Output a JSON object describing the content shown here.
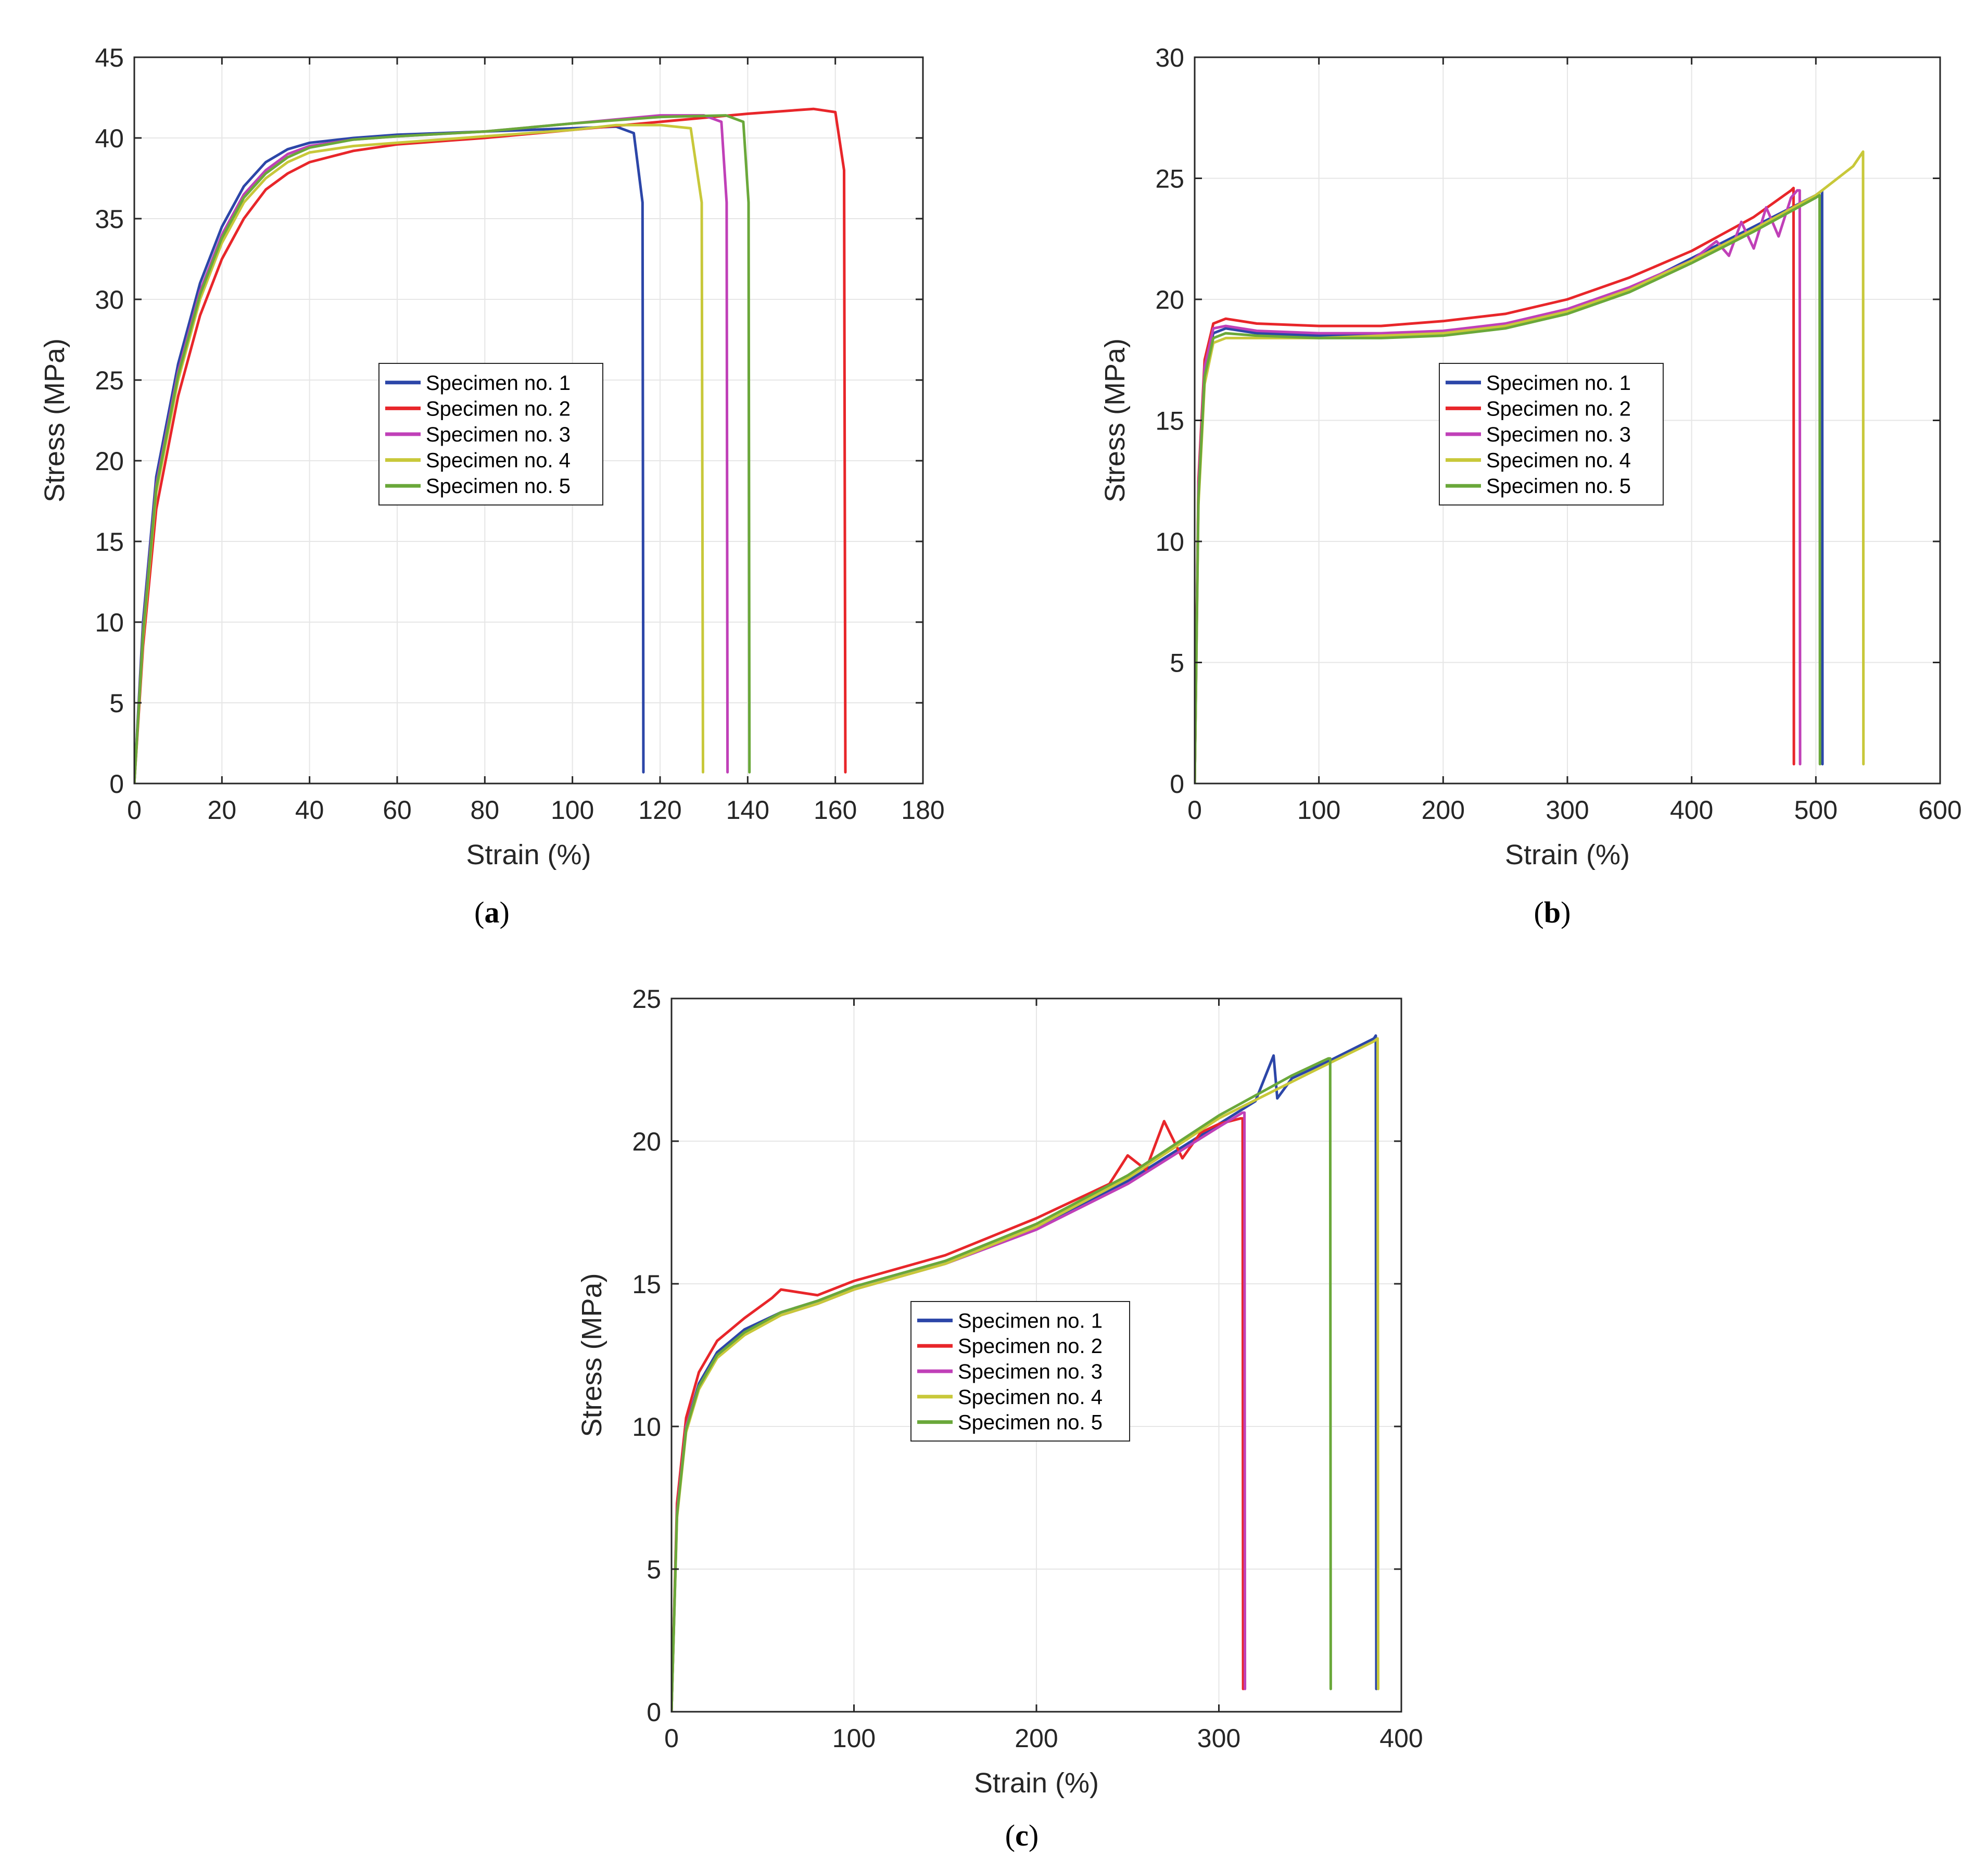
{
  "chart_data": [
    {
      "type": "line",
      "id": "a",
      "caption": "a",
      "xlabel": "Strain (%)",
      "ylabel": "Stress (MPa)",
      "xlim": [
        0,
        180
      ],
      "ylim": [
        0,
        45
      ],
      "xticks": [
        0,
        20,
        40,
        60,
        80,
        100,
        120,
        140,
        160,
        180
      ],
      "yticks": [
        0,
        5,
        10,
        15,
        20,
        25,
        30,
        35,
        40,
        45
      ],
      "grid": true,
      "legend_position": "center",
      "series": [
        {
          "name": "Specimen no. 1",
          "color": "#2c46a8",
          "x": [
            0,
            2,
            5,
            10,
            15,
            20,
            25,
            30,
            35,
            40,
            50,
            60,
            80,
            100,
            110,
            114,
            116,
            116.2
          ],
          "y": [
            0,
            10,
            19,
            26,
            31,
            34.5,
            37,
            38.5,
            39.3,
            39.7,
            40,
            40.2,
            40.4,
            40.6,
            40.7,
            40.3,
            36,
            0.7
          ]
        },
        {
          "name": "Specimen no. 2",
          "color": "#e8262a",
          "x": [
            0,
            2,
            5,
            10,
            15,
            20,
            25,
            30,
            35,
            40,
            50,
            60,
            80,
            100,
            120,
            140,
            155,
            160,
            162,
            162.3
          ],
          "y": [
            0,
            8.5,
            17,
            24,
            29,
            32.5,
            35,
            36.8,
            37.8,
            38.5,
            39.2,
            39.6,
            40,
            40.5,
            41,
            41.5,
            41.8,
            41.6,
            38,
            0.7
          ]
        },
        {
          "name": "Specimen no. 3",
          "color": "#c040b8",
          "x": [
            0,
            2,
            5,
            10,
            15,
            20,
            25,
            30,
            35,
            40,
            50,
            60,
            80,
            100,
            120,
            130,
            134,
            135.2,
            135.4
          ],
          "y": [
            0,
            9.5,
            18.5,
            25.5,
            30.5,
            34,
            36.5,
            38,
            39,
            39.5,
            39.9,
            40.1,
            40.4,
            40.9,
            41.4,
            41.4,
            41,
            36,
            0.7
          ]
        },
        {
          "name": "Specimen no. 4",
          "color": "#c8c83a",
          "x": [
            0,
            2,
            5,
            10,
            15,
            20,
            25,
            30,
            35,
            40,
            50,
            60,
            80,
            100,
            110,
            120,
            127,
            129.5,
            129.8
          ],
          "y": [
            0,
            9,
            18,
            25,
            30,
            33.5,
            36,
            37.5,
            38.5,
            39.1,
            39.5,
            39.7,
            40.1,
            40.5,
            40.8,
            40.8,
            40.6,
            36,
            0.7
          ]
        },
        {
          "name": "Specimen no. 5",
          "color": "#6aa83a",
          "x": [
            0,
            2,
            5,
            10,
            15,
            20,
            25,
            30,
            35,
            40,
            50,
            60,
            80,
            100,
            120,
            135,
            139,
            140.2,
            140.4
          ],
          "y": [
            0,
            9.3,
            18.3,
            25.3,
            30.3,
            33.8,
            36.3,
            37.8,
            38.8,
            39.4,
            39.9,
            40.1,
            40.4,
            40.9,
            41.3,
            41.4,
            41,
            36,
            0.7
          ]
        }
      ]
    },
    {
      "type": "line",
      "id": "b",
      "caption": "b",
      "xlabel": "Strain (%)",
      "ylabel": "Stress (MPa)",
      "xlim": [
        0,
        600
      ],
      "ylim": [
        0,
        30
      ],
      "xticks": [
        0,
        100,
        200,
        300,
        400,
        500,
        600
      ],
      "yticks": [
        0,
        5,
        10,
        15,
        20,
        25,
        30
      ],
      "grid": true,
      "legend_position": "center-right",
      "series": [
        {
          "name": "Specimen no. 1",
          "color": "#2c46a8",
          "x": [
            0,
            3,
            8,
            15,
            25,
            50,
            100,
            150,
            200,
            250,
            300,
            350,
            400,
            450,
            500,
            505,
            505.3
          ],
          "y": [
            0,
            12,
            17,
            18.6,
            18.8,
            18.6,
            18.5,
            18.5,
            18.6,
            18.9,
            19.5,
            20.4,
            21.7,
            23,
            24.3,
            24.5,
            0.8
          ]
        },
        {
          "name": "Specimen no. 2",
          "color": "#e8262a",
          "x": [
            0,
            3,
            8,
            15,
            25,
            50,
            100,
            150,
            200,
            250,
            300,
            350,
            400,
            450,
            480,
            482,
            482.3
          ],
          "y": [
            0,
            12.5,
            17.5,
            19,
            19.2,
            19,
            18.9,
            18.9,
            19.1,
            19.4,
            20,
            20.9,
            22,
            23.4,
            24.5,
            24.6,
            0.8
          ]
        },
        {
          "name": "Specimen no. 3",
          "color": "#c040b8",
          "x": [
            0,
            3,
            8,
            15,
            25,
            50,
            100,
            150,
            200,
            250,
            300,
            350,
            400,
            420,
            430,
            440,
            450,
            460,
            470,
            480,
            485,
            487,
            487.3
          ],
          "y": [
            0,
            12.2,
            17.2,
            18.8,
            18.9,
            18.7,
            18.6,
            18.6,
            18.7,
            19,
            19.6,
            20.5,
            21.6,
            22.4,
            21.8,
            23.2,
            22.1,
            23.8,
            22.6,
            24.2,
            24.5,
            24.5,
            0.8
          ]
        },
        {
          "name": "Specimen no. 4",
          "color": "#c8c83a",
          "x": [
            0,
            3,
            8,
            15,
            25,
            50,
            100,
            150,
            200,
            250,
            300,
            350,
            400,
            450,
            500,
            530,
            538,
            538.3
          ],
          "y": [
            0,
            11.5,
            16.5,
            18.2,
            18.4,
            18.4,
            18.4,
            18.5,
            18.6,
            18.9,
            19.5,
            20.4,
            21.6,
            22.9,
            24.3,
            25.5,
            26.1,
            0.8
          ]
        },
        {
          "name": "Specimen no. 5",
          "color": "#6aa83a",
          "x": [
            0,
            3,
            8,
            15,
            25,
            50,
            100,
            150,
            200,
            250,
            300,
            350,
            400,
            450,
            500,
            503,
            503.3
          ],
          "y": [
            0,
            11.8,
            16.8,
            18.4,
            18.6,
            18.5,
            18.4,
            18.4,
            18.5,
            18.8,
            19.4,
            20.3,
            21.5,
            22.8,
            24.2,
            24.3,
            0.8
          ]
        }
      ]
    },
    {
      "type": "line",
      "id": "c",
      "caption": "c",
      "xlabel": "Strain (%)",
      "ylabel": "Stress (MPa)",
      "xlim": [
        0,
        400
      ],
      "ylim": [
        0,
        25
      ],
      "xticks": [
        0,
        100,
        200,
        300,
        400
      ],
      "yticks": [
        0,
        5,
        10,
        15,
        20,
        25
      ],
      "grid": true,
      "legend_position": "bottom-center",
      "series": [
        {
          "name": "Specimen no. 1",
          "color": "#2c46a8",
          "x": [
            0,
            3,
            8,
            15,
            25,
            40,
            60,
            80,
            100,
            150,
            200,
            250,
            300,
            320,
            330,
            332,
            340,
            360,
            385,
            386,
            386.3
          ],
          "y": [
            0,
            7,
            10,
            11.5,
            12.6,
            13.4,
            14,
            14.4,
            14.9,
            15.8,
            17,
            18.6,
            20.6,
            21.4,
            23,
            21.5,
            22.2,
            22.8,
            23.6,
            23.7,
            0.8
          ]
        },
        {
          "name": "Specimen no. 2",
          "color": "#e8262a",
          "x": [
            0,
            3,
            8,
            15,
            25,
            40,
            55,
            60,
            80,
            100,
            150,
            200,
            240,
            250,
            260,
            270,
            280,
            290,
            300,
            312,
            313,
            313.3
          ],
          "y": [
            0,
            7.3,
            10.3,
            11.9,
            13,
            13.8,
            14.5,
            14.8,
            14.6,
            15.1,
            16,
            17.3,
            18.5,
            19.5,
            19,
            20.7,
            19.4,
            20.3,
            20.6,
            20.8,
            20.8,
            0.8
          ]
        },
        {
          "name": "Specimen no. 3",
          "color": "#c040b8",
          "x": [
            0,
            3,
            8,
            15,
            25,
            40,
            60,
            80,
            100,
            150,
            200,
            250,
            300,
            313,
            314,
            314.3
          ],
          "y": [
            0,
            7,
            10,
            11.4,
            12.5,
            13.3,
            13.9,
            14.3,
            14.8,
            15.7,
            16.9,
            18.5,
            20.5,
            21,
            21,
            0.8
          ]
        },
        {
          "name": "Specimen no. 4",
          "color": "#c8c83a",
          "x": [
            0,
            3,
            8,
            15,
            25,
            40,
            60,
            80,
            100,
            150,
            200,
            250,
            300,
            350,
            385,
            387,
            387.3
          ],
          "y": [
            0,
            6.8,
            9.8,
            11.3,
            12.4,
            13.2,
            13.9,
            14.3,
            14.8,
            15.7,
            17,
            18.7,
            20.8,
            22.4,
            23.5,
            23.6,
            0.8
          ]
        },
        {
          "name": "Specimen no. 5",
          "color": "#6aa83a",
          "x": [
            0,
            3,
            8,
            15,
            25,
            40,
            60,
            80,
            100,
            150,
            200,
            250,
            300,
            340,
            360,
            361,
            361.3
          ],
          "y": [
            0,
            6.9,
            9.9,
            11.4,
            12.5,
            13.3,
            14,
            14.4,
            14.9,
            15.8,
            17.1,
            18.8,
            20.9,
            22.3,
            22.9,
            22.9,
            0.8
          ]
        }
      ]
    }
  ]
}
